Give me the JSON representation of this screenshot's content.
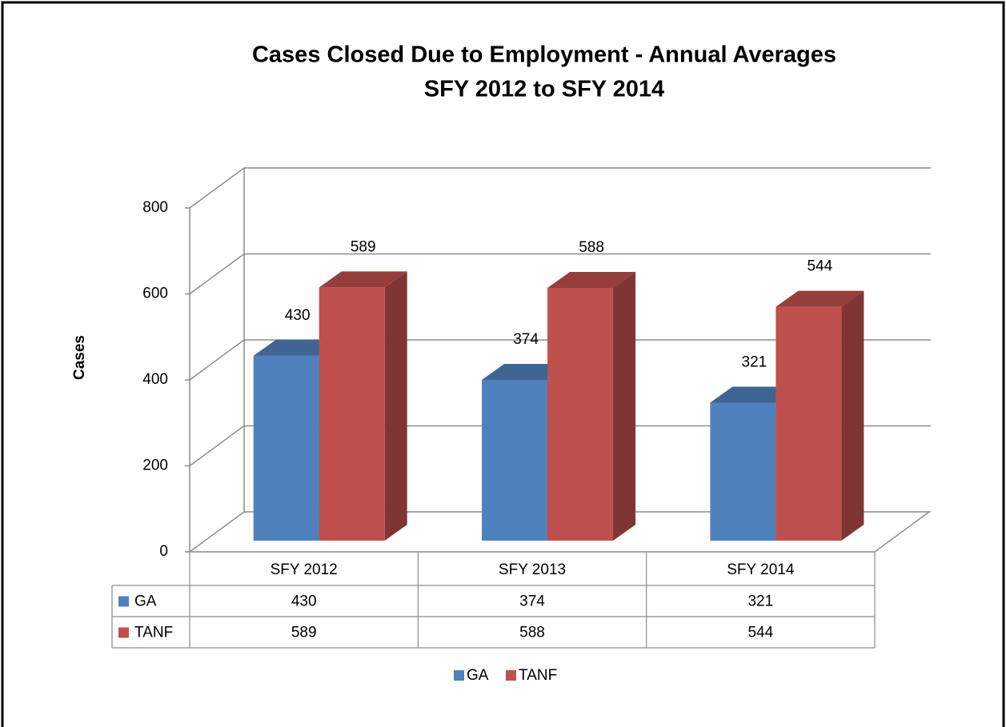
{
  "chart_data": {
    "type": "bar3d",
    "title": "Cases Closed Due to Employment - Annual Averages",
    "subtitle": "SFY 2012 to SFY 2014",
    "y_label": "Cases",
    "categories": [
      "SFY 2012",
      "SFY 2013",
      "SFY 2014"
    ],
    "series": [
      {
        "name": "GA",
        "color": "#4f81bd",
        "values": [
          430,
          374,
          321
        ]
      },
      {
        "name": "TANF",
        "color": "#c0504d",
        "values": [
          589,
          588,
          544
        ]
      }
    ],
    "ylim": [
      0,
      800
    ],
    "yticks": [
      0,
      200,
      400,
      600,
      800
    ],
    "grid": true,
    "data_table": true,
    "legend": "bottom"
  }
}
